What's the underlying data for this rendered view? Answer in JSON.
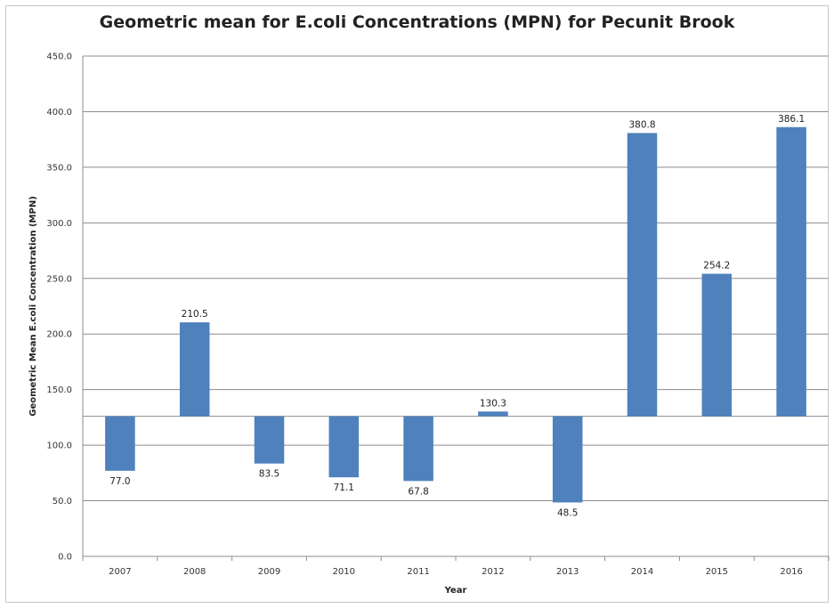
{
  "chart_data": {
    "type": "bar",
    "title": "Geometric mean for E.coli Concentrations (MPN) for Pecunit Brook",
    "xlabel": "Year",
    "ylabel": "Geometric Mean E.coli Concentration (MPN)",
    "categories": [
      "2007",
      "2008",
      "2009",
      "2010",
      "2011",
      "2012",
      "2013",
      "2014",
      "2015",
      "2016"
    ],
    "values": [
      77.0,
      210.5,
      83.5,
      71.1,
      67.8,
      130.3,
      48.5,
      380.8,
      254.2,
      386.1
    ],
    "value_labels": [
      "77.0",
      "210.5",
      "83.5",
      "71.1",
      "67.8",
      "130.3",
      "48.5",
      "380.8",
      "254.2",
      "386.1"
    ],
    "baseline": 126,
    "ylim": [
      0,
      450
    ],
    "yticks": [
      "0.0",
      "50.0",
      "100.0",
      "150.0",
      "200.0",
      "250.0",
      "300.0",
      "350.0",
      "400.0",
      "450.0"
    ],
    "grid": true,
    "bar_color": "#4f81bd",
    "grid_color": "#8c8c8c"
  }
}
